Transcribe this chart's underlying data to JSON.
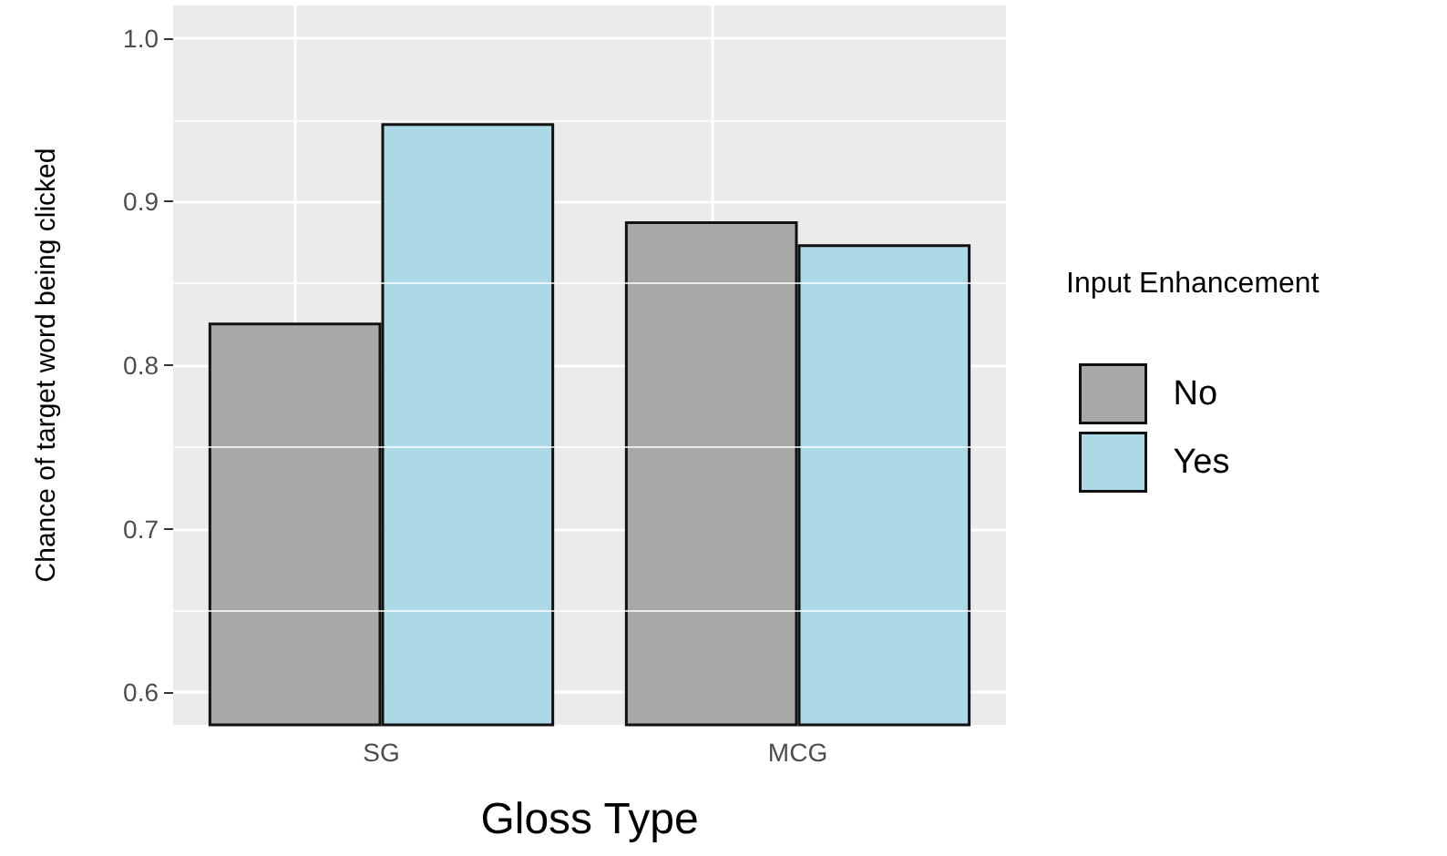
{
  "chart_data": {
    "type": "bar",
    "xlabel": "Gloss Type",
    "ylabel": "Chance of target word being clicked",
    "legend_title": "Input Enhancement",
    "categories": [
      "SG",
      "MCG"
    ],
    "series": [
      {
        "name": "No",
        "color": "#a9a9a9",
        "values": [
          0.826,
          0.888
        ]
      },
      {
        "name": "Yes",
        "color": "#add8e6",
        "values": [
          0.948,
          0.874
        ]
      }
    ],
    "ylim": [
      0.58,
      1.02
    ],
    "yticks": [
      0.6,
      0.7,
      0.8,
      0.9,
      {
        "value": 1,
        "label": "1.0"
      }
    ],
    "grid": true,
    "legend": "right"
  }
}
